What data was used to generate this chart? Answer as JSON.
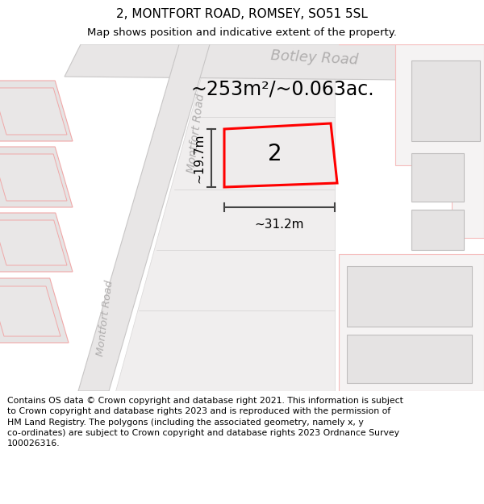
{
  "title_line1": "2, MONTFORT ROAD, ROMSEY, SO51 5SL",
  "title_line2": "Map shows position and indicative extent of the property.",
  "footer_text": "Contains OS data © Crown copyright and database right 2021. This information is subject\nto Crown copyright and database rights 2023 and is reproduced with the permission of\nHM Land Registry. The polygons (including the associated geometry, namely x, y\nco-ordinates) are subject to Crown copyright and database rights 2023 Ordnance Survey\n100026316.",
  "area_text": "~253m²/~0.063ac.",
  "width_text": "~31.2m",
  "height_text": "~19.7m",
  "plot_number": "2",
  "title_fontsize": 11,
  "subtitle_fontsize": 9.5,
  "footer_fontsize": 7.8,
  "botley_road_label": "Botley Road",
  "montfort_road_label1": "Montfort Road",
  "montfort_road_label2": "Montfort Road"
}
